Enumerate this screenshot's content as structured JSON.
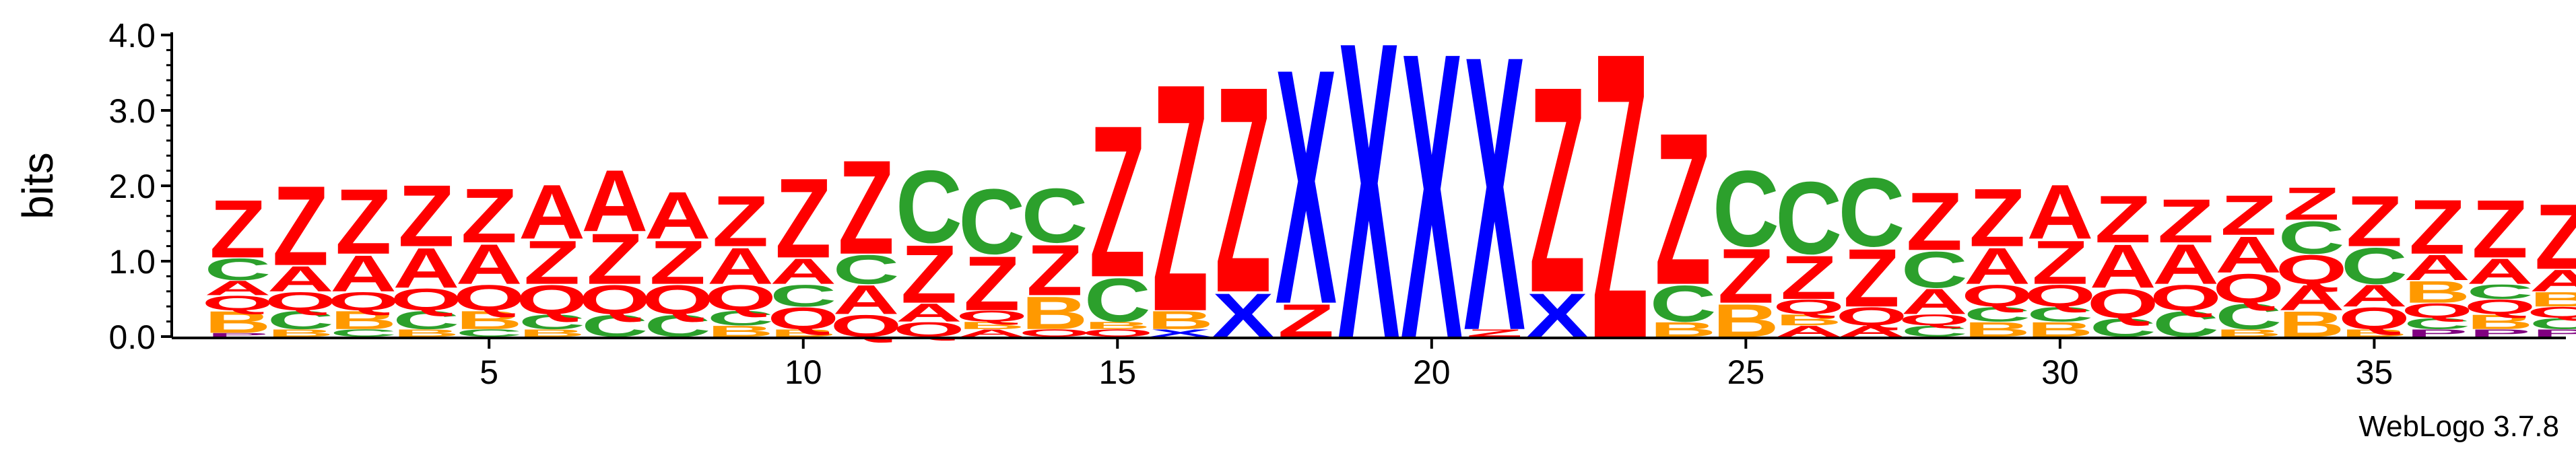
{
  "chart_data": {
    "type": "sequence-logo",
    "ylabel": "bits",
    "ylim": [
      0,
      4.0
    ],
    "y_ticks": [
      "0.0",
      "1.0",
      "2.0",
      "3.0",
      "4.0"
    ],
    "x_ticks": [
      {
        "pos": 5,
        "label": "5"
      },
      {
        "pos": 10,
        "label": "10"
      },
      {
        "pos": 15,
        "label": "15"
      },
      {
        "pos": 20,
        "label": "20"
      },
      {
        "pos": 25,
        "label": "25"
      },
      {
        "pos": 30,
        "label": "30"
      },
      {
        "pos": 35,
        "label": "35"
      }
    ],
    "footer": "WebLogo 3.7.8",
    "colors": {
      "Z": "#ff0000",
      "Q": "#ff0000",
      "A": "#ff0000",
      "C": "#2ca02c",
      "B": "#ff9900",
      "X": "#0000ff",
      "P": "#800080"
    },
    "positions": [
      {
        "pos": 1,
        "stack": [
          {
            "l": "P",
            "h": 0.05
          },
          {
            "l": "B",
            "h": 0.3
          },
          {
            "l": "Q",
            "h": 0.2
          },
          {
            "l": "A",
            "h": 0.2
          },
          {
            "l": "C",
            "h": 0.3
          },
          {
            "l": "Z",
            "h": 0.8
          }
        ]
      },
      {
        "pos": 2,
        "stack": [
          {
            "l": "B",
            "h": 0.1
          },
          {
            "l": "C",
            "h": 0.25
          },
          {
            "l": "Q",
            "h": 0.25
          },
          {
            "l": "A",
            "h": 0.35
          },
          {
            "l": "Z",
            "h": 1.1
          }
        ]
      },
      {
        "pos": 3,
        "stack": [
          {
            "l": "C",
            "h": 0.1
          },
          {
            "l": "B",
            "h": 0.25
          },
          {
            "l": "Q",
            "h": 0.25
          },
          {
            "l": "A",
            "h": 0.5
          },
          {
            "l": "Z",
            "h": 0.9
          }
        ]
      },
      {
        "pos": 4,
        "stack": [
          {
            "l": "B",
            "h": 0.1
          },
          {
            "l": "C",
            "h": 0.25
          },
          {
            "l": "Q",
            "h": 0.3
          },
          {
            "l": "A",
            "h": 0.55
          },
          {
            "l": "Z",
            "h": 0.85
          }
        ]
      },
      {
        "pos": 5,
        "stack": [
          {
            "l": "C",
            "h": 0.1
          },
          {
            "l": "B",
            "h": 0.25
          },
          {
            "l": "Q",
            "h": 0.35
          },
          {
            "l": "A",
            "h": 0.55
          },
          {
            "l": "Z",
            "h": 0.75
          }
        ]
      },
      {
        "pos": 6,
        "stack": [
          {
            "l": "B",
            "h": 0.1
          },
          {
            "l": "C",
            "h": 0.2
          },
          {
            "l": "Q",
            "h": 0.4
          },
          {
            "l": "Z",
            "h": 0.6
          },
          {
            "l": "A",
            "h": 0.75
          }
        ]
      },
      {
        "pos": 7,
        "stack": [
          {
            "l": "C",
            "h": 0.3
          },
          {
            "l": "Q",
            "h": 0.4
          },
          {
            "l": "Z",
            "h": 0.7
          },
          {
            "l": "A",
            "h": 0.85
          }
        ]
      },
      {
        "pos": 8,
        "stack": [
          {
            "l": "C",
            "h": 0.3
          },
          {
            "l": "Q",
            "h": 0.4
          },
          {
            "l": "Z",
            "h": 0.6
          },
          {
            "l": "A",
            "h": 0.65
          }
        ]
      },
      {
        "pos": 9,
        "stack": [
          {
            "l": "B",
            "h": 0.15
          },
          {
            "l": "C",
            "h": 0.2
          },
          {
            "l": "Q",
            "h": 0.35
          },
          {
            "l": "A",
            "h": 0.5
          },
          {
            "l": "Z",
            "h": 0.7
          }
        ]
      },
      {
        "pos": 10,
        "stack": [
          {
            "l": "B",
            "h": 0.1
          },
          {
            "l": "Q",
            "h": 0.3
          },
          {
            "l": "C",
            "h": 0.3
          },
          {
            "l": "A",
            "h": 0.35
          },
          {
            "l": "Z",
            "h": 1.1
          }
        ]
      },
      {
        "pos": 11,
        "stack": [
          {
            "l": "Q",
            "h": 0.3
          },
          {
            "l": "A",
            "h": 0.4
          },
          {
            "l": "C",
            "h": 0.4
          },
          {
            "l": "Z",
            "h": 1.3
          }
        ]
      },
      {
        "pos": 12,
        "stack": [
          {
            "l": "Q",
            "h": 0.2
          },
          {
            "l": "A",
            "h": 0.25
          },
          {
            "l": "Z",
            "h": 0.8
          },
          {
            "l": "C",
            "h": 1.0
          }
        ]
      },
      {
        "pos": 13,
        "stack": [
          {
            "l": "A",
            "h": 0.1
          },
          {
            "l": "B",
            "h": 0.1
          },
          {
            "l": "Q",
            "h": 0.15
          },
          {
            "l": "Z",
            "h": 0.75
          },
          {
            "l": "C",
            "h": 0.9
          }
        ]
      },
      {
        "pos": 14,
        "stack": [
          {
            "l": "Q",
            "h": 0.1
          },
          {
            "l": "B",
            "h": 0.45
          },
          {
            "l": "Z",
            "h": 0.7
          },
          {
            "l": "C",
            "h": 0.75
          }
        ]
      },
      {
        "pos": 15,
        "stack": [
          {
            "l": "Q",
            "h": 0.1
          },
          {
            "l": "B",
            "h": 0.1
          },
          {
            "l": "C",
            "h": 0.6
          },
          {
            "l": "Z",
            "h": 2.1
          }
        ]
      },
      {
        "pos": 16,
        "stack": [
          {
            "l": "X",
            "h": 0.1
          },
          {
            "l": "B",
            "h": 0.25
          },
          {
            "l": "Z",
            "h": 3.15
          }
        ]
      },
      {
        "pos": 17,
        "stack": [
          {
            "l": "X",
            "h": 0.6
          },
          {
            "l": "Z",
            "h": 2.85
          }
        ]
      },
      {
        "pos": 18,
        "stack": [
          {
            "l": "Z",
            "h": 0.45
          },
          {
            "l": "X",
            "h": 3.25
          }
        ]
      },
      {
        "pos": 19,
        "stack": [
          {
            "l": "X",
            "h": 4.1
          }
        ]
      },
      {
        "pos": 20,
        "stack": [
          {
            "l": "X",
            "h": 3.95
          }
        ]
      },
      {
        "pos": 21,
        "stack": [
          {
            "l": "Z",
            "h": 0.1
          },
          {
            "l": "X",
            "h": 3.8
          }
        ]
      },
      {
        "pos": 22,
        "stack": [
          {
            "l": "X",
            "h": 0.6
          },
          {
            "l": "Z",
            "h": 2.85
          }
        ]
      },
      {
        "pos": 23,
        "stack": [
          {
            "l": "Z",
            "h": 3.95
          }
        ]
      },
      {
        "pos": 24,
        "stack": [
          {
            "l": "B",
            "h": 0.2
          },
          {
            "l": "C",
            "h": 0.5
          },
          {
            "l": "Z",
            "h": 2.1
          }
        ]
      },
      {
        "pos": 25,
        "stack": [
          {
            "l": "B",
            "h": 0.45
          },
          {
            "l": "Z",
            "h": 0.75
          },
          {
            "l": "C",
            "h": 1.05
          }
        ]
      },
      {
        "pos": 26,
        "stack": [
          {
            "l": "A",
            "h": 0.15
          },
          {
            "l": "B",
            "h": 0.15
          },
          {
            "l": "Q",
            "h": 0.2
          },
          {
            "l": "Z",
            "h": 0.6
          },
          {
            "l": "C",
            "h": 1.0
          }
        ]
      },
      {
        "pos": 27,
        "stack": [
          {
            "l": "A",
            "h": 0.15
          },
          {
            "l": "Q",
            "h": 0.25
          },
          {
            "l": "Z",
            "h": 0.8
          },
          {
            "l": "C",
            "h": 0.95
          }
        ]
      },
      {
        "pos": 28,
        "stack": [
          {
            "l": "C",
            "h": 0.15
          },
          {
            "l": "Q",
            "h": 0.15
          },
          {
            "l": "A",
            "h": 0.35
          },
          {
            "l": "C",
            "h": 0.5
          },
          {
            "l": "Z",
            "h": 0.8
          }
        ]
      },
      {
        "pos": 29,
        "stack": [
          {
            "l": "B",
            "h": 0.2
          },
          {
            "l": "C",
            "h": 0.2
          },
          {
            "l": "Q",
            "h": 0.3
          },
          {
            "l": "A",
            "h": 0.5
          },
          {
            "l": "Z",
            "h": 0.8
          }
        ]
      },
      {
        "pos": 30,
        "stack": [
          {
            "l": "B",
            "h": 0.2
          },
          {
            "l": "C",
            "h": 0.2
          },
          {
            "l": "Q",
            "h": 0.3
          },
          {
            "l": "Z",
            "h": 0.6
          },
          {
            "l": "A",
            "h": 0.75
          }
        ]
      },
      {
        "pos": 31,
        "stack": [
          {
            "l": "C",
            "h": 0.25
          },
          {
            "l": "Q",
            "h": 0.4
          },
          {
            "l": "A",
            "h": 0.6
          },
          {
            "l": "Z",
            "h": 0.65
          }
        ]
      },
      {
        "pos": 32,
        "stack": [
          {
            "l": "C",
            "h": 0.35
          },
          {
            "l": "Q",
            "h": 0.35
          },
          {
            "l": "A",
            "h": 0.55
          },
          {
            "l": "Z",
            "h": 0.6
          }
        ]
      },
      {
        "pos": 33,
        "stack": [
          {
            "l": "B",
            "h": 0.1
          },
          {
            "l": "C",
            "h": 0.35
          },
          {
            "l": "Q",
            "h": 0.4
          },
          {
            "l": "A",
            "h": 0.5
          },
          {
            "l": "Z",
            "h": 0.55
          }
        ]
      },
      {
        "pos": 34,
        "stack": [
          {
            "l": "B",
            "h": 0.35
          },
          {
            "l": "A",
            "h": 0.35
          },
          {
            "l": "Q",
            "h": 0.4
          },
          {
            "l": "C",
            "h": 0.45
          },
          {
            "l": "Z",
            "h": 0.45
          }
        ]
      },
      {
        "pos": 35,
        "stack": [
          {
            "l": "B",
            "h": 0.1
          },
          {
            "l": "Q",
            "h": 0.3
          },
          {
            "l": "A",
            "h": 0.3
          },
          {
            "l": "C",
            "h": 0.5
          },
          {
            "l": "Z",
            "h": 0.7
          }
        ]
      },
      {
        "pos": 36,
        "stack": [
          {
            "l": "P",
            "h": 0.1
          },
          {
            "l": "C",
            "h": 0.15
          },
          {
            "l": "Q",
            "h": 0.2
          },
          {
            "l": "B",
            "h": 0.3
          },
          {
            "l": "A",
            "h": 0.35
          },
          {
            "l": "Z",
            "h": 0.75
          }
        ]
      },
      {
        "pos": 37,
        "stack": [
          {
            "l": "P",
            "h": 0.1
          },
          {
            "l": "B",
            "h": 0.2
          },
          {
            "l": "Q",
            "h": 0.2
          },
          {
            "l": "C",
            "h": 0.2
          },
          {
            "l": "A",
            "h": 0.35
          },
          {
            "l": "Z",
            "h": 0.8
          }
        ]
      },
      {
        "pos": 38,
        "stack": [
          {
            "l": "P",
            "h": 0.1
          },
          {
            "l": "C",
            "h": 0.15
          },
          {
            "l": "Q",
            "h": 0.15
          },
          {
            "l": "B",
            "h": 0.2
          },
          {
            "l": "A",
            "h": 0.3
          },
          {
            "l": "Z",
            "h": 0.9
          }
        ]
      }
    ]
  }
}
